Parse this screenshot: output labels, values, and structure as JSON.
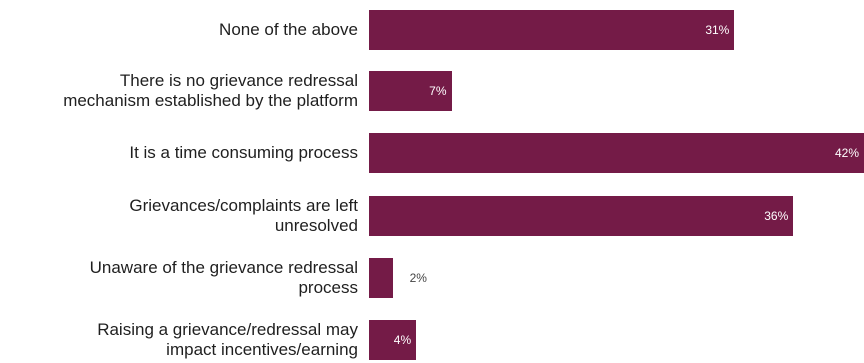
{
  "chart_data": {
    "type": "bar",
    "orientation": "horizontal",
    "title": "",
    "xlabel": "",
    "ylabel": "",
    "categories": [
      "None of the above",
      "There is no grievance redressal mechanism established by the platform",
      "It is a time consuming process",
      "Grievances/complaints are left unresolved",
      "Unaware of the grievance redressal process",
      "Raising a grievance/redressal may impact incentives/earning"
    ],
    "category_lines": [
      [
        "None of the above"
      ],
      [
        "There is no grievance redressal",
        "mechanism established by the platform"
      ],
      [
        "It is a time consuming process"
      ],
      [
        "Grievances/complaints are left",
        "unresolved"
      ],
      [
        "Unaware of the grievance redressal",
        "process"
      ],
      [
        "Raising a grievance/redressal may",
        "impact incentives/earning"
      ]
    ],
    "values": [
      31,
      7,
      42,
      36,
      2,
      4
    ],
    "value_labels": [
      "31%",
      "7%",
      "42%",
      "36%",
      "2%",
      "4%"
    ],
    "unit": "%",
    "xlim": [
      0,
      42
    ],
    "bar_color": "#741b47",
    "grid": false,
    "legend": "none"
  }
}
